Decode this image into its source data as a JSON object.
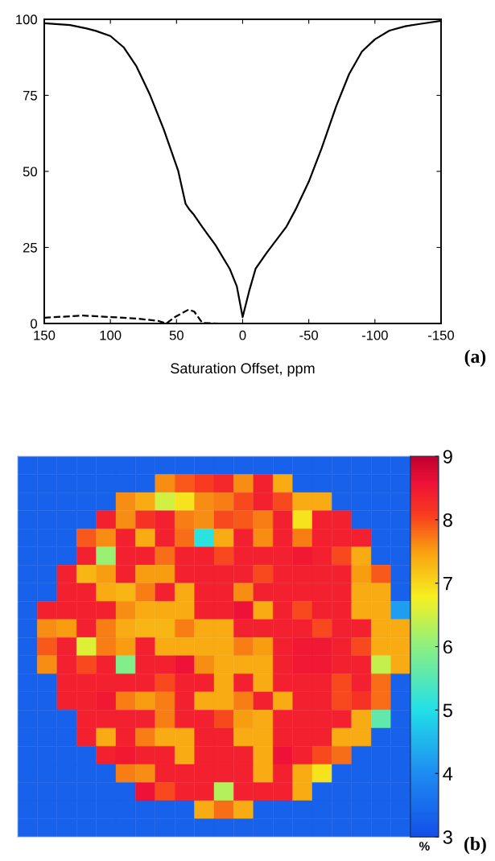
{
  "chart_data": [
    {
      "type": "line",
      "xlabel": "Saturation Offset, ppm",
      "xlim": [
        150,
        -150
      ],
      "xticks": [
        150,
        100,
        50,
        0,
        -50,
        -100,
        -150
      ],
      "ylim": [
        0,
        100
      ],
      "yticks": [
        0,
        25,
        50,
        75,
        100
      ],
      "annotations": [
        "(a)"
      ],
      "series": [
        {
          "color": "#000000",
          "line_style": "solid",
          "x": [
            150,
            130.5,
            118,
            111,
            100,
            90,
            80.5,
            70,
            59.8,
            48.8,
            43.2,
            40.2,
            37.3,
            30.5,
            20.7,
            9.8,
            4.4,
            0,
            -4.9,
            -9.8,
            -18.3,
            -32.9,
            -40.2,
            -50,
            -59.8,
            -70.7,
            -80.5,
            -90.2,
            -100,
            -111,
            -123,
            -133,
            -150
          ],
          "values": [
            98.7,
            98.1,
            97,
            96.2,
            94.5,
            90.8,
            84.7,
            75.1,
            64,
            50.3,
            39.4,
            37.4,
            36,
            31.7,
            25.9,
            18,
            12.2,
            2.1,
            10.6,
            18,
            23.3,
            31.7,
            37.6,
            46.6,
            57.7,
            71.4,
            82,
            89.4,
            93.4,
            96.3,
            97.7,
            98.4,
            99.5
          ]
        },
        {
          "color": "#000000",
          "line_style": "dashed",
          "x": [
            150,
            120.7,
            98.8,
            79.3,
            63.4,
            57.8,
            51.2,
            40.7,
            36.6,
            30.5,
            18.3,
            9.8
          ],
          "values": [
            1.9,
            2.6,
            2.1,
            1.6,
            0.8,
            0,
            2.1,
            4.6,
            3.9,
            0.2,
            0,
            0
          ]
        }
      ]
    },
    {
      "type": "heatmap",
      "clim": [
        3,
        9
      ],
      "cticks": [
        3,
        4,
        5,
        6,
        7,
        8,
        9
      ],
      "clabel": "%",
      "annotations": [
        "(b)"
      ],
      "categories": [
        null,
        null,
        null,
        null,
        null,
        null,
        null,
        null,
        null,
        null,
        null,
        null,
        null,
        null,
        null,
        null,
        null,
        null,
        null,
        null
      ],
      "y_categories": [
        null,
        null,
        null,
        null,
        null,
        null,
        null,
        null,
        null,
        null,
        null,
        null,
        null,
        null,
        null,
        null,
        null,
        null,
        null,
        null,
        null
      ],
      "cells": [
        [
          3.3,
          3.3,
          3.3,
          3.3,
          3.3,
          3.3,
          3.3,
          3.3,
          3.3,
          3.3,
          3.3,
          3.3,
          3.3,
          3.3,
          3.3,
          3.3,
          3.3,
          3.3,
          3.3,
          3.3
        ],
        [
          3.3,
          3.3,
          3.3,
          3.3,
          3.3,
          3.3,
          3.3,
          7.6,
          7.9,
          8.1,
          8.3,
          7.6,
          8.4,
          7.4,
          3.3,
          3.3,
          3.3,
          3.3,
          3.3,
          3.3
        ],
        [
          3.3,
          3.3,
          3.3,
          3.3,
          3.3,
          7.6,
          7.4,
          6.5,
          6.9,
          7.6,
          7.7,
          8.0,
          8.4,
          8.0,
          7.4,
          7.4,
          3.3,
          3.3,
          3.3,
          3.3
        ],
        [
          3.3,
          3.3,
          3.3,
          3.3,
          8.4,
          7.6,
          8.2,
          8.4,
          7.7,
          7.6,
          8.0,
          7.9,
          7.7,
          8.4,
          6.9,
          8.4,
          8.4,
          3.3,
          3.3,
          3.3
        ],
        [
          3.3,
          3.3,
          3.3,
          7.9,
          7.6,
          8.4,
          7.4,
          8.4,
          7.8,
          5.1,
          7.4,
          8.4,
          7.6,
          8.4,
          7.7,
          8.4,
          8.4,
          8.4,
          3.3,
          3.3
        ],
        [
          3.3,
          3.3,
          3.3,
          8.4,
          6.1,
          8.4,
          8.4,
          7.8,
          8.4,
          8.4,
          8.0,
          8.4,
          8.4,
          8.4,
          8.5,
          8.4,
          8.0,
          7.4,
          3.3,
          3.3
        ],
        [
          3.3,
          3.3,
          8.4,
          7.3,
          7.5,
          8.4,
          7.5,
          7.5,
          8.4,
          8.4,
          8.4,
          8.4,
          8.0,
          8.4,
          8.4,
          8.4,
          8.4,
          7.5,
          7.9,
          3.3
        ],
        [
          3.3,
          3.3,
          8.4,
          8.4,
          7.4,
          7.3,
          7.7,
          8.4,
          7.4,
          8.4,
          8.4,
          7.6,
          8.4,
          8.4,
          8.4,
          8.4,
          8.4,
          7.4,
          7.4,
          3.3
        ],
        [
          3.3,
          8.4,
          8.4,
          8.4,
          8.4,
          7.6,
          7.4,
          7.4,
          7.4,
          8.4,
          8.4,
          8.6,
          7.4,
          8.4,
          8.0,
          8.4,
          8.4,
          7.4,
          7.4,
          4.2
        ],
        [
          3.3,
          7.6,
          7.5,
          8.4,
          7.7,
          7.4,
          7.3,
          7.3,
          7.7,
          7.4,
          7.4,
          8.4,
          8.4,
          8.4,
          8.4,
          8.0,
          8.4,
          8.4,
          7.4,
          7.4
        ],
        [
          3.3,
          7.9,
          8.4,
          6.6,
          7.7,
          7.5,
          8.4,
          7.4,
          7.4,
          7.4,
          7.4,
          7.7,
          7.5,
          8.4,
          8.5,
          8.5,
          8.4,
          8.0,
          7.4,
          7.4
        ],
        [
          3.3,
          7.6,
          8.4,
          8.0,
          8.4,
          5.9,
          8.4,
          8.4,
          8.6,
          7.6,
          7.4,
          7.4,
          7.4,
          8.4,
          8.5,
          8.5,
          8.4,
          8.4,
          6.4,
          7.4
        ],
        [
          3.3,
          3.3,
          8.4,
          8.4,
          8.4,
          8.4,
          8.4,
          8.0,
          8.4,
          8.4,
          7.4,
          8.4,
          7.4,
          8.4,
          8.4,
          8.4,
          8.0,
          8.4,
          7.8,
          3.3
        ],
        [
          3.3,
          3.3,
          8.4,
          8.4,
          8.5,
          7.7,
          7.5,
          7.7,
          8.4,
          7.4,
          7.4,
          7.7,
          8.4,
          7.4,
          8.4,
          8.4,
          8.0,
          8.2,
          7.8,
          3.3
        ],
        [
          3.3,
          3.3,
          3.3,
          8.4,
          8.4,
          8.4,
          8.4,
          7.7,
          8.4,
          8.4,
          8.0,
          7.5,
          7.4,
          8.4,
          8.4,
          8.4,
          8.4,
          7.4,
          5.6,
          3.3
        ],
        [
          3.3,
          3.3,
          3.3,
          8.4,
          7.4,
          8.4,
          7.7,
          7.4,
          7.4,
          8.4,
          8.4,
          7.4,
          7.4,
          8.4,
          8.4,
          8.4,
          7.4,
          7.4,
          3.3,
          3.3
        ],
        [
          3.3,
          3.3,
          3.3,
          3.3,
          8.4,
          8.5,
          8.4,
          8.4,
          7.4,
          8.4,
          8.4,
          8.4,
          7.4,
          8.6,
          8.4,
          8.0,
          7.8,
          3.3,
          3.3,
          3.3
        ],
        [
          3.3,
          3.3,
          3.3,
          3.3,
          3.3,
          7.7,
          7.6,
          8.4,
          8.4,
          8.4,
          8.4,
          8.4,
          7.4,
          8.4,
          7.4,
          6.9,
          3.3,
          3.3,
          3.3,
          3.3
        ],
        [
          3.3,
          3.3,
          3.3,
          3.3,
          3.3,
          3.3,
          8.6,
          8.0,
          8.4,
          8.4,
          6.3,
          8.4,
          8.4,
          8.4,
          7.4,
          3.3,
          3.3,
          3.3,
          3.3,
          3.3
        ],
        [
          3.3,
          3.3,
          3.3,
          3.3,
          3.3,
          3.3,
          3.3,
          3.3,
          3.3,
          7.4,
          7.8,
          7.4,
          3.3,
          3.3,
          3.3,
          3.3,
          3.3,
          3.3,
          3.3,
          3.3
        ],
        [
          3.3,
          3.3,
          3.3,
          3.3,
          3.3,
          3.3,
          3.3,
          3.3,
          3.3,
          3.3,
          3.3,
          3.3,
          3.3,
          3.3,
          3.3,
          3.3,
          3.3,
          3.3,
          3.3,
          3.3
        ]
      ]
    }
  ]
}
